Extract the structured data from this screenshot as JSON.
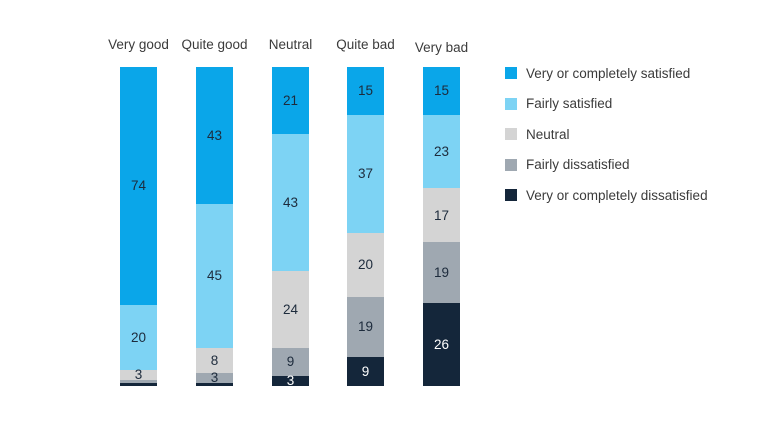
{
  "chart_data": {
    "type": "bar",
    "variant": "stacked-vertical",
    "categories": [
      "Very good",
      "Quite good",
      "Neutral",
      "Quite bad",
      "Very bad"
    ],
    "series": [
      {
        "name": "Very or completely satisfied",
        "color": "#0aa6e9",
        "label_color": "#1d2b3c",
        "values": [
          74,
          43,
          21,
          15,
          15
        ]
      },
      {
        "name": "Fairly satisfied",
        "color": "#7dd3f4",
        "label_color": "#1d2b3c",
        "values": [
          20,
          45,
          43,
          37,
          23
        ]
      },
      {
        "name": "Neutral",
        "color": "#d4d4d4",
        "label_color": "#1d2b3c",
        "values": [
          3,
          8,
          24,
          20,
          17
        ]
      },
      {
        "name": "Fairly dissatisfied",
        "color": "#9fa8b1",
        "label_color": "#1d2b3c",
        "values": [
          1,
          3,
          9,
          19,
          19
        ]
      },
      {
        "name": "Very or completely dissatisfied",
        "color": "#14263a",
        "label_color": "#ffffff",
        "values": [
          1,
          1,
          3,
          9,
          26
        ]
      }
    ],
    "value_label_min": 3,
    "ylim": [
      0,
      100
    ],
    "grid": false,
    "legend_position": "right",
    "title": "",
    "xlabel": "",
    "ylabel": ""
  },
  "legend": {
    "items": [
      {
        "label": "Very or completely satisfied"
      },
      {
        "label": "Fairly satisfied"
      },
      {
        "label": "Neutral"
      },
      {
        "label": "Fairly dissatisfied"
      },
      {
        "label": "Very or completely dissatisfied"
      }
    ]
  }
}
